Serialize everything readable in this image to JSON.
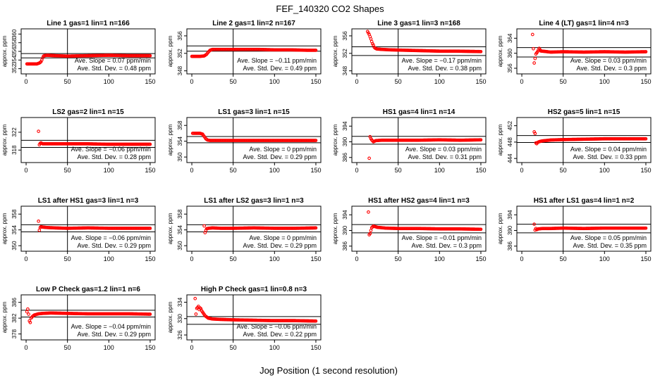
{
  "figure": {
    "title": "FEF_140320  CO2 Shapes",
    "xlabel": "Jog Position (1 second resolution)"
  },
  "colors": {
    "points": "#ff0000",
    "axes": "#000000"
  },
  "chart_data": [
    {
      "type": "scatter",
      "title": "Line 1 gas=1 lin=1 n=166",
      "ylabel": "approx. ppm",
      "xticks": [
        0,
        50,
        100,
        150
      ],
      "yticks": [
        352,
        354,
        356,
        358,
        360
      ],
      "ylim": [
        350.8,
        361.2
      ],
      "xlim": [
        -6,
        156
      ],
      "hlines": [
        355.5,
        354.5
      ],
      "slope_text": "Ave. Slope =  0.07  ppm/min",
      "std_text": "Ave. Std. Dev. =  0.48  ppm",
      "x": [
        1,
        4,
        7,
        10,
        13,
        16,
        18,
        19,
        20,
        21,
        22,
        25,
        35,
        50,
        75,
        100,
        125,
        150
      ],
      "y": [
        353.1,
        353.1,
        353.1,
        353.1,
        353.1,
        353.3,
        353.6,
        354.0,
        354.5,
        354.9,
        355.0,
        355.1,
        355.0,
        354.9,
        355.0,
        355.1,
        355.0,
        355.0
      ]
    },
    {
      "type": "scatter",
      "title": "Line 2 gas=1 lin=2 n=167",
      "ylabel": "approx. ppm",
      "xticks": [
        0,
        50,
        100,
        150
      ],
      "yticks": [
        348,
        352,
        356
      ],
      "ylim": [
        347.3,
        357.6
      ],
      "xlim": [
        -6,
        156
      ],
      "hlines": [
        353.7,
        352.5
      ],
      "slope_text": "Ave. Slope =  −0.11  ppm/min",
      "std_text": "Ave. Std. Dev. =  0.49  ppm",
      "x": [
        0,
        5,
        10,
        15,
        18,
        20,
        22,
        25,
        40,
        60,
        80,
        100,
        120,
        140,
        150
      ],
      "y": [
        351.3,
        351.3,
        351.3,
        351.4,
        351.8,
        352.3,
        352.7,
        352.9,
        352.9,
        352.9,
        352.9,
        352.8,
        352.8,
        352.7,
        352.7
      ]
    },
    {
      "type": "scatter",
      "title": "Line 3 gas=1 lin=3 n=168",
      "ylabel": "approx. ppm",
      "xticks": [
        0,
        50,
        100,
        150
      ],
      "yticks": [
        348,
        352,
        356
      ],
      "ylim": [
        347.3,
        357.6
      ],
      "xlim": [
        -6,
        156
      ],
      "hlines": [
        353.5,
        351.5
      ],
      "slope_text": "Ave. Slope =  −0.17  ppm/min",
      "std_text": "Ave. Std. Dev. =  0.38  ppm",
      "x": [
        13,
        15,
        16,
        17,
        18,
        19,
        20,
        21,
        22,
        24,
        30,
        40,
        60,
        80,
        100,
        120,
        150
      ],
      "y": [
        357.0,
        356.3,
        355.8,
        355.3,
        354.7,
        354.2,
        353.9,
        353.4,
        353.2,
        353.0,
        352.9,
        352.8,
        352.7,
        352.6,
        352.5,
        352.5,
        352.4
      ]
    },
    {
      "type": "scatter",
      "title": "Line 4 (LT) gas=1 lin=4 n=3",
      "ylabel": "approx. ppm",
      "xticks": [
        0,
        50,
        100,
        150
      ],
      "yticks": [
        356,
        360,
        364
      ],
      "ylim": [
        354.5,
        366.5
      ],
      "xlim": [
        -6,
        156
      ],
      "hlines": [
        361.5,
        359.0
      ],
      "slope_text": "Ave. Slope =  0.03  ppm/min",
      "std_text": "Ave. Std. Dev. =  0.3  ppm",
      "x": [
        13,
        15,
        16,
        17,
        19,
        21,
        23,
        27,
        35,
        50,
        75,
        100,
        125,
        150
      ],
      "y": [
        365.0,
        357.4,
        358.6,
        359.8,
        360.4,
        361.3,
        360.6,
        360.5,
        360.3,
        360.4,
        360.3,
        360.4,
        360.3,
        360.4
      ]
    },
    {
      "type": "scatter",
      "title": "LS2 gas=2 lin=1 n=15",
      "ylabel": "approx. ppm",
      "xticks": [
        0,
        50,
        100,
        150
      ],
      "yticks": [
        318,
        322
      ],
      "ylim": [
        315.2,
        325.3
      ],
      "xlim": [
        -6,
        156
      ],
      "hlines": [
        320.2,
        318.6
      ],
      "slope_text": "Ave. Slope =  −0.06  ppm/min",
      "std_text": "Ave. Std. Dev. =  0.28  ppm",
      "x": [
        15,
        16,
        17,
        18,
        20,
        25,
        35,
        50,
        75,
        100,
        125,
        150
      ],
      "y": [
        322.2,
        319.2,
        319.5,
        319.6,
        319.4,
        319.4,
        319.4,
        319.4,
        319.4,
        319.3,
        319.3,
        319.3
      ]
    },
    {
      "type": "scatter",
      "title": "LS1 gas=3 lin=1 n=15",
      "ylabel": "approx. ppm",
      "xticks": [
        0,
        50,
        100,
        150
      ],
      "yticks": [
        350,
        354,
        358
      ],
      "ylim": [
        348.6,
        360.0
      ],
      "xlim": [
        -6,
        156
      ],
      "hlines": [
        355.2,
        353.6
      ],
      "slope_text": "Ave. Slope =  0  ppm/min",
      "std_text": "Ave. Std. Dev. =  0.29  ppm",
      "x": [
        1,
        4,
        7,
        10,
        13,
        15,
        17,
        19,
        22,
        30,
        50,
        75,
        100,
        125,
        150
      ],
      "y": [
        356.0,
        356.0,
        356.0,
        356.0,
        355.8,
        355.2,
        354.6,
        354.3,
        354.2,
        354.2,
        354.2,
        354.2,
        354.2,
        354.2,
        354.2
      ]
    },
    {
      "type": "scatter",
      "title": "HS1 gas=4 lin=1 n=14",
      "ylabel": "approx. ppm",
      "xticks": [
        0,
        50,
        100,
        150
      ],
      "yticks": [
        386,
        390,
        394
      ],
      "ylim": [
        384.7,
        396.2
      ],
      "xlim": [
        -6,
        156
      ],
      "hlines": [
        391.4,
        389.4
      ],
      "slope_text": "Ave. Slope =  0.03  ppm/min",
      "std_text": "Ave. Std. Dev. =  0.31  ppm",
      "x": [
        15,
        16,
        17,
        18,
        20,
        23,
        30,
        50,
        75,
        100,
        125,
        150
      ],
      "y": [
        385.8,
        391.3,
        390.8,
        390.5,
        390.0,
        390.3,
        390.4,
        390.4,
        390.4,
        390.5,
        390.4,
        390.5
      ]
    },
    {
      "type": "scatter",
      "title": "HS2 gas=5 lin=1 n=15",
      "ylabel": "approx. ppm",
      "xticks": [
        0,
        50,
        100,
        150
      ],
      "yticks": [
        444,
        448,
        452
      ],
      "ylim": [
        443.0,
        454.0
      ],
      "xlim": [
        -6,
        156
      ],
      "hlines": [
        449.6,
        447.9
      ],
      "slope_text": "Ave. Slope =  0.04  ppm/min",
      "std_text": "Ave. Std. Dev. =  0.33  ppm",
      "x": [
        15,
        16,
        17,
        18,
        19,
        21,
        25,
        35,
        50,
        75,
        100,
        125,
        150
      ],
      "y": [
        450.5,
        450.1,
        447.8,
        447.6,
        447.9,
        448.1,
        448.3,
        448.5,
        448.6,
        448.7,
        448.8,
        448.8,
        448.8
      ]
    },
    {
      "type": "scatter",
      "title": "LS1 after HS1 gas=3 lin=1 n=3",
      "ylabel": "approx. ppm",
      "xticks": [
        0,
        50,
        100,
        150
      ],
      "yticks": [
        350,
        354,
        358
      ],
      "ylim": [
        348.6,
        360.0
      ],
      "xlim": [
        -6,
        156
      ],
      "hlines": [
        355.3,
        353.5
      ],
      "slope_text": "Ave. Slope =  −0.06  ppm/min",
      "std_text": "Ave. Std. Dev. =  0.29  ppm",
      "x": [
        15,
        16,
        17,
        18,
        20,
        25,
        35,
        50,
        75,
        100,
        125,
        150
      ],
      "y": [
        356.2,
        353.9,
        354.6,
        354.8,
        354.7,
        354.6,
        354.5,
        354.4,
        354.5,
        354.4,
        354.4,
        354.4
      ]
    },
    {
      "type": "scatter",
      "title": "LS1 after LS2 gas=3 lin=1 n=3",
      "ylabel": "approx. ppm",
      "xticks": [
        0,
        50,
        100,
        150
      ],
      "yticks": [
        350,
        354,
        358
      ],
      "ylim": [
        348.6,
        360.0
      ],
      "xlim": [
        -6,
        156
      ],
      "hlines": [
        355.3,
        353.5
      ],
      "slope_text": "Ave. Slope =  0  ppm/min",
      "std_text": "Ave. Std. Dev. =  0.29  ppm",
      "x": [
        15,
        16,
        17,
        18,
        20,
        25,
        35,
        50,
        75,
        100,
        125,
        150
      ],
      "y": [
        355.0,
        353.3,
        353.9,
        354.3,
        354.4,
        354.5,
        354.4,
        354.4,
        354.5,
        354.4,
        354.4,
        354.5
      ]
    },
    {
      "type": "scatter",
      "title": "HS1 after HS2 gas=4 lin=1 n=3",
      "ylabel": "approx. ppm",
      "xticks": [
        0,
        50,
        100,
        150
      ],
      "yticks": [
        386,
        390,
        394
      ],
      "ylim": [
        384.7,
        396.2
      ],
      "xlim": [
        -6,
        156
      ],
      "hlines": [
        391.5,
        389.4
      ],
      "slope_text": "Ave. Slope =  −0.01  ppm/min",
      "std_text": "Ave. Std. Dev. =  0.3  ppm",
      "x": [
        14,
        15,
        16,
        17,
        18,
        20,
        25,
        35,
        50,
        75,
        100,
        125,
        150
      ],
      "y": [
        394.7,
        388.9,
        389.2,
        390.0,
        390.7,
        391.1,
        390.8,
        390.6,
        390.5,
        390.5,
        390.4,
        390.4,
        390.3
      ]
    },
    {
      "type": "scatter",
      "title": "HS1 after LS1 gas=4 lin=1 n=2",
      "ylabel": "approx. ppm",
      "xticks": [
        0,
        50,
        100,
        150
      ],
      "yticks": [
        386,
        390,
        394
      ],
      "ylim": [
        384.7,
        396.2
      ],
      "xlim": [
        -6,
        156
      ],
      "hlines": [
        391.6,
        389.4
      ],
      "slope_text": "Ave. Slope =  0.05  ppm/min",
      "std_text": "Ave. Std. Dev. =  0.35  ppm",
      "x": [
        15,
        16,
        17,
        18,
        20,
        25,
        35,
        50,
        75,
        100,
        125,
        150
      ],
      "y": [
        391.6,
        390.1,
        390.5,
        390.2,
        390.4,
        390.5,
        390.5,
        390.6,
        390.5,
        390.6,
        390.6,
        390.6
      ]
    },
    {
      "type": "scatter",
      "title": "Low P Check gas=1.2 lin=1 n=6",
      "ylabel": "approx. ppm",
      "xticks": [
        0,
        50,
        100,
        150
      ],
      "yticks": [
        378,
        382,
        386
      ],
      "ylim": [
        376.5,
        387.9
      ],
      "xlim": [
        -6,
        156
      ],
      "hlines": [
        384.0,
        382.3
      ],
      "slope_text": "Ave. Slope =  −0.04  ppm/min",
      "std_text": "Ave. Std. Dev. =  0.29  ppm",
      "x": [
        1,
        2,
        3,
        4,
        5,
        6,
        8,
        10,
        15,
        20,
        30,
        50,
        75,
        100,
        125,
        150
      ],
      "y": [
        383.6,
        384.3,
        383.0,
        381.3,
        380.9,
        382.0,
        382.5,
        382.8,
        383.1,
        383.2,
        383.3,
        383.2,
        383.1,
        383.1,
        383.1,
        383.0
      ]
    },
    {
      "type": "scatter",
      "title": "High P Check gas=1 lin=0.8 n=3",
      "ylabel": "approx. ppm",
      "xticks": [
        0,
        50,
        100,
        150
      ],
      "yticks": [
        326,
        330,
        334
      ],
      "ylim": [
        324.8,
        335.8
      ],
      "xlim": [
        -6,
        156
      ],
      "hlines": [
        330.5,
        328.6
      ],
      "slope_text": "Ave. Slope =  −0.06  ppm/min",
      "std_text": "Ave. Std. Dev. =  0.22  ppm",
      "x": [
        4,
        5,
        6,
        7,
        8,
        9,
        10,
        11,
        12,
        14,
        16,
        18,
        20,
        25,
        35,
        50,
        75,
        100,
        125,
        150
      ],
      "y": [
        334.9,
        331.1,
        332.5,
        332.7,
        333.0,
        332.2,
        332.6,
        332.4,
        331.9,
        331.3,
        330.7,
        330.4,
        330.1,
        329.9,
        329.8,
        329.7,
        329.6,
        329.5,
        329.5,
        329.4
      ]
    }
  ]
}
